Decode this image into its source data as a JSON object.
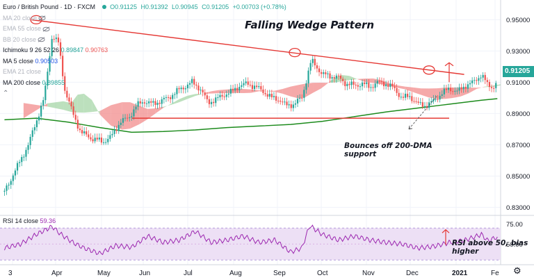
{
  "header": {
    "symbol": "Euro / British Pound · 1D · FXCM",
    "open": "O0.91125",
    "high": "H0.91392",
    "low": "L0.90945",
    "close": "C0.91205",
    "change": "+0.00703 (+0.78%)"
  },
  "indicators": [
    {
      "label": "MA 20 close",
      "value": "",
      "hidden": true
    },
    {
      "label": "EMA 55 close",
      "value": "",
      "hidden": true
    },
    {
      "label": "BB 20 close",
      "value": "",
      "hidden": true
    },
    {
      "label": "Ichimoku 9 26 52 26",
      "value": "0.89847",
      "value2": "0.90763"
    },
    {
      "label": "MA 5 close",
      "value": "0.90503"
    },
    {
      "label": "EMA 21 close",
      "value": "",
      "hidden": true
    },
    {
      "label": "MA 200 close",
      "value": "0.89855"
    }
  ],
  "rsi_legend": {
    "label": "RSI 14 close",
    "value": "59.36"
  },
  "annotations": {
    "title": "Falling Wedge Pattern",
    "bounce": "Bounces off 200-DMA support",
    "rsi": "RSI above 50, bias higher"
  },
  "last_price": "0.91205",
  "colors": {
    "up": "#26a69a",
    "down": "#ef5350",
    "ma200": "#1b8a1b",
    "wedge": "#e53935",
    "rsi": "#9c27b0",
    "rsi_band": "#ede0f5",
    "cloud_bull": "#a5d6a7",
    "cloud_bear": "#f28c8c"
  },
  "chart_data": [
    {
      "type": "candlestick",
      "x": [
        "3",
        "Apr",
        "May",
        "Jun",
        "Jul",
        "Aug",
        "Sep",
        "Oct",
        "Nov",
        "Dec",
        "2021",
        "Fe"
      ],
      "y_ticks": [
        "0.95000",
        "0.93000",
        "0.91000",
        "0.89000",
        "0.87000",
        "0.85000",
        "0.83000"
      ],
      "ylim": [
        0.8315,
        0.9555
      ],
      "series": [
        {
          "name": "Price",
          "close_path": [
            [
              0,
              0.84
            ],
            [
              1.5,
              0.87
            ],
            [
              2.5,
              0.9
            ],
            [
              3.0,
              0.94
            ],
            [
              3.4,
              0.935
            ],
            [
              3.8,
              0.905
            ],
            [
              4.3,
              0.89
            ],
            [
              4.8,
              0.878
            ],
            [
              5.5,
              0.874
            ],
            [
              6.2,
              0.872
            ],
            [
              6.7,
              0.875
            ],
            [
              7.3,
              0.885
            ],
            [
              7.8,
              0.887
            ],
            [
              8.3,
              0.895
            ],
            [
              8.8,
              0.898
            ],
            [
              9.3,
              0.896
            ],
            [
              9.8,
              0.898
            ],
            [
              10.3,
              0.9
            ],
            [
              10.8,
              0.904
            ],
            [
              11.3,
              0.907
            ],
            [
              11.8,
              0.91
            ],
            [
              12.3,
              0.906
            ],
            [
              12.8,
              0.897
            ],
            [
              13.3,
              0.899
            ],
            [
              13.8,
              0.902
            ],
            [
              14.3,
              0.904
            ],
            [
              14.8,
              0.908
            ],
            [
              15.3,
              0.909
            ],
            [
              15.8,
              0.907
            ],
            [
              16.3,
              0.904
            ],
            [
              16.8,
              0.9
            ],
            [
              17.3,
              0.899
            ],
            [
              17.7,
              0.895
            ],
            [
              18.2,
              0.896
            ],
            [
              18.7,
              0.9
            ],
            [
              19.0,
              0.912
            ],
            [
              19.3,
              0.924
            ],
            [
              19.7,
              0.919
            ],
            [
              20.0,
              0.915
            ],
            [
              20.5,
              0.914
            ],
            [
              21.0,
              0.913
            ],
            [
              21.5,
              0.909
            ],
            [
              22.0,
              0.908
            ],
            [
              22.5,
              0.909
            ],
            [
              23.0,
              0.907
            ],
            [
              23.5,
              0.91
            ],
            [
              24.0,
              0.909
            ],
            [
              24.5,
              0.906
            ],
            [
              25.0,
              0.9
            ],
            [
              25.5,
              0.901
            ],
            [
              26.0,
              0.896
            ],
            [
              26.5,
              0.895
            ],
            [
              27.0,
              0.898
            ],
            [
              27.5,
              0.903
            ],
            [
              28.0,
              0.906
            ],
            [
              28.5,
              0.904
            ],
            [
              29.0,
              0.908
            ],
            [
              29.5,
              0.91
            ],
            [
              30.0,
              0.915
            ],
            [
              30.4,
              0.908
            ],
            [
              30.8,
              0.907
            ],
            [
              31.0,
              0.912
            ]
          ]
        },
        {
          "name": "MA 200",
          "values": [
            [
              0,
              0.886
            ],
            [
              2,
              0.887
            ],
            [
              4,
              0.8845
            ],
            [
              6,
              0.881
            ],
            [
              8,
              0.878
            ],
            [
              10,
              0.8785
            ],
            [
              12,
              0.8795
            ],
            [
              14,
              0.881
            ],
            [
              16,
              0.882
            ],
            [
              18,
              0.883
            ],
            [
              20,
              0.885
            ],
            [
              22,
              0.888
            ],
            [
              24,
              0.891
            ],
            [
              26,
              0.8935
            ],
            [
              28,
              0.896
            ],
            [
              30,
              0.8985
            ],
            [
              31,
              0.8995
            ]
          ]
        }
      ],
      "wedge_upper": [
        [
          0.0,
          0.95
        ],
        [
          32.5,
          0.915
        ]
      ],
      "support_line": [
        [
          9.0,
          0.887
        ],
        [
          32.0,
          0.887
        ]
      ]
    },
    {
      "type": "line",
      "name": "RSI 14",
      "y_ticks": [
        "75.00",
        "50.00"
      ],
      "ylim": [
        25,
        85
      ],
      "values": [
        [
          0,
          45
        ],
        [
          1,
          50
        ],
        [
          2,
          62
        ],
        [
          3,
          72
        ],
        [
          3.5,
          63
        ],
        [
          4.3,
          52
        ],
        [
          5,
          45
        ],
        [
          6,
          38
        ],
        [
          7,
          48
        ],
        [
          8,
          46
        ],
        [
          9,
          60
        ],
        [
          10,
          52
        ],
        [
          11,
          55
        ],
        [
          12,
          66
        ],
        [
          13,
          52
        ],
        [
          14,
          55
        ],
        [
          15,
          60
        ],
        [
          16,
          52
        ],
        [
          17,
          55
        ],
        [
          18,
          40
        ],
        [
          18.7,
          45
        ],
        [
          19.2,
          73
        ],
        [
          20,
          62
        ],
        [
          21,
          55
        ],
        [
          22,
          60
        ],
        [
          23,
          55
        ],
        [
          24,
          52
        ],
        [
          25,
          50
        ],
        [
          26,
          45
        ],
        [
          27,
          47
        ],
        [
          28,
          52
        ],
        [
          29,
          55
        ],
        [
          30,
          62
        ],
        [
          30.4,
          54
        ],
        [
          31,
          59
        ]
      ]
    }
  ]
}
